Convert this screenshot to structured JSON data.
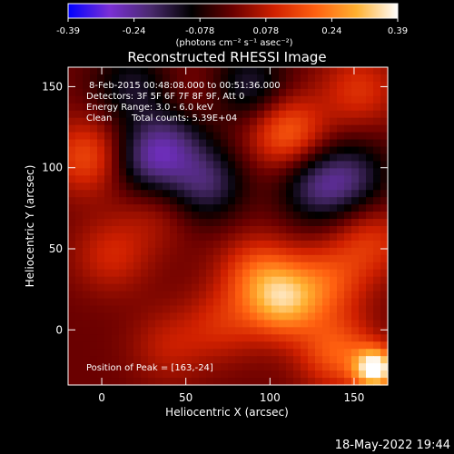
{
  "colorbar": {
    "ticks": [
      "-0.39",
      "-0.24",
      "-0.078",
      "0.078",
      "0.24",
      "0.39"
    ],
    "unit_label": "(photons cm⁻² s⁻¹ asec⁻²)",
    "range": [
      -0.39,
      0.39
    ],
    "colormap": [
      "#0000ff",
      "#7a2fd6",
      "#4a2a6e",
      "#000000",
      "#6a0000",
      "#d02000",
      "#ff6010",
      "#ffb030",
      "#ffffff"
    ]
  },
  "chart_data": {
    "type": "heatmap",
    "title": "Reconstructed RHESSI Image",
    "xlabel": "Heliocentric X (arcsec)",
    "ylabel": "Heliocentric Y (arcsec)",
    "xlim": [
      -20,
      170
    ],
    "ylim": [
      -34,
      162
    ],
    "xticks": [
      "0",
      "50",
      "100",
      "150"
    ],
    "xtick_values": [
      0,
      50,
      100,
      150
    ],
    "yticks": [
      "0",
      "50",
      "100",
      "150"
    ],
    "ytick_values": [
      0,
      50,
      100,
      150
    ],
    "annotations": [
      "8-Feb-2015 00:48:08.000 to 00:51:36.000",
      "Detectors: 3F 5F 6F 7F 8F 9F, Att 0",
      "Energy Range: 3.0 - 6.0 keV",
      "Clean",
      "Total counts: 5.39E+04"
    ],
    "peak_label": "Position of Peak = [163,-24]",
    "peak_position": [
      163,
      -24
    ],
    "sources": [
      {
        "x": -8,
        "y": 107,
        "value": 0.16
      },
      {
        "x": 6,
        "y": 46,
        "value": 0.1
      },
      {
        "x": 32,
        "y": 72,
        "value": 0.06
      },
      {
        "x": 110,
        "y": 122,
        "value": 0.19
      },
      {
        "x": 153,
        "y": 148,
        "value": 0.12
      },
      {
        "x": 108,
        "y": 18,
        "value": 0.27
      },
      {
        "x": 92,
        "y": 36,
        "value": 0.14
      },
      {
        "x": 160,
        "y": 54,
        "value": 0.12
      },
      {
        "x": 135,
        "y": 30,
        "value": 0.14
      },
      {
        "x": 163,
        "y": -24,
        "value": 0.39
      },
      {
        "x": 140,
        "y": -14,
        "value": 0.18
      },
      {
        "x": 72,
        "y": 4,
        "value": 0.1
      },
      {
        "x": 40,
        "y": -10,
        "value": 0.08
      },
      {
        "x": 55,
        "y": 140,
        "value": 0.05
      },
      {
        "x": 28,
        "y": 105,
        "value": -0.2
      },
      {
        "x": 62,
        "y": 90,
        "value": -0.18
      },
      {
        "x": 88,
        "y": 150,
        "value": -0.15
      },
      {
        "x": 128,
        "y": 88,
        "value": -0.17
      },
      {
        "x": 150,
        "y": 95,
        "value": -0.14
      },
      {
        "x": 18,
        "y": 150,
        "value": -0.13
      },
      {
        "x": 45,
        "y": 120,
        "value": -0.12
      }
    ]
  },
  "timestamp": "18-May-2022 19:44"
}
